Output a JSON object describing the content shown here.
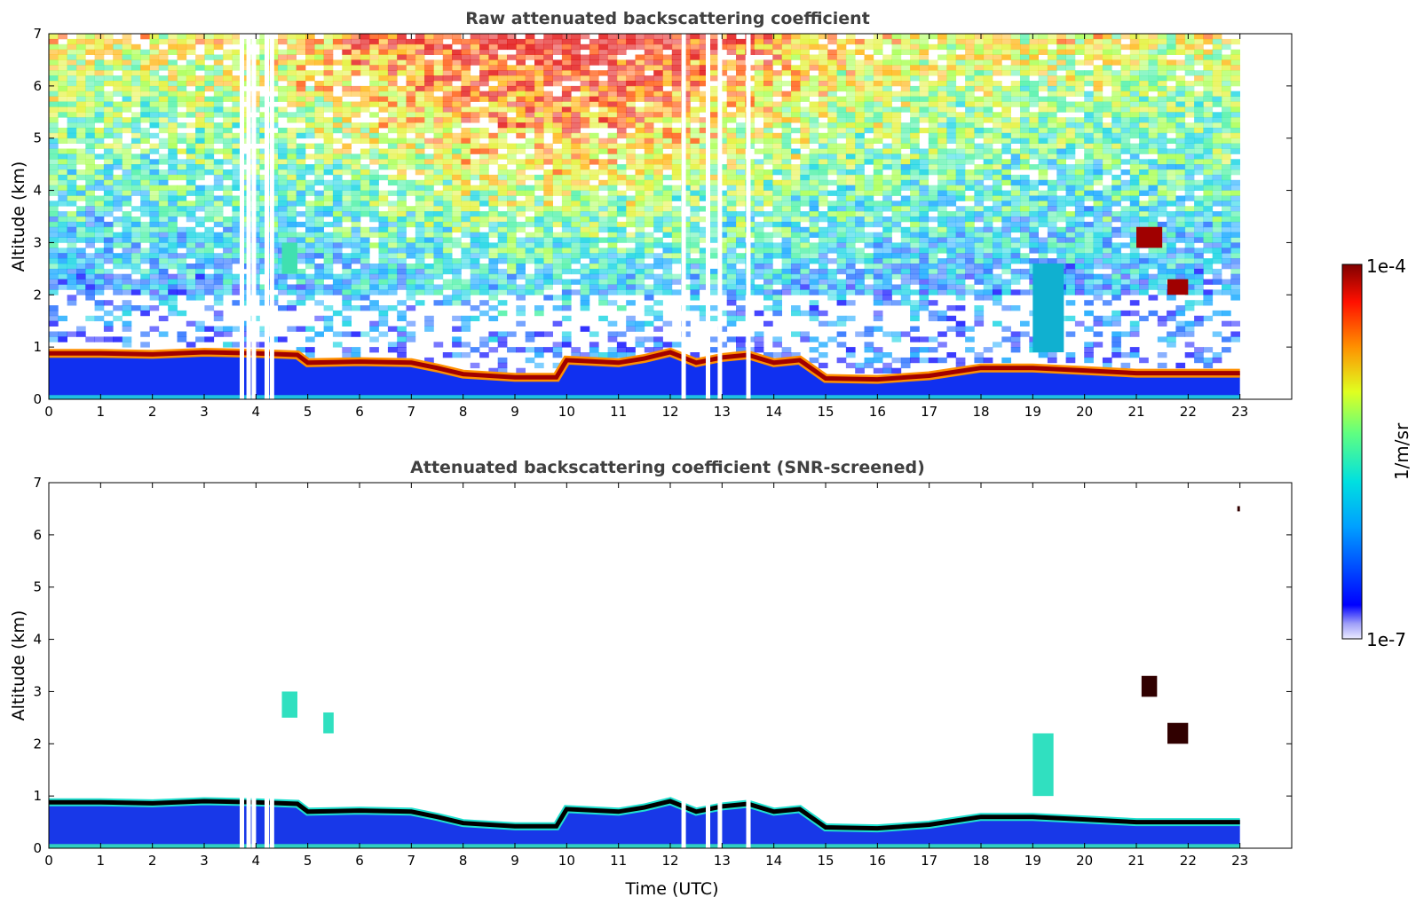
{
  "chart_data": [
    {
      "type": "heatmap",
      "title": "Raw attenuated backscattering coefficient",
      "xlabel": "",
      "ylabel": "Altitude (km)",
      "xlim": [
        0,
        24
      ],
      "ylim": [
        0,
        7
      ],
      "xticks": [
        "0",
        "1",
        "2",
        "3",
        "4",
        "5",
        "6",
        "7",
        "8",
        "9",
        "10",
        "11",
        "12",
        "13",
        "14",
        "15",
        "16",
        "17",
        "18",
        "19",
        "20",
        "21",
        "22",
        "23"
      ],
      "yticks": [
        "0",
        "1",
        "2",
        "3",
        "4",
        "5",
        "6",
        "7"
      ],
      "data_end_hour": 23,
      "boundary_layer_top_km": [
        [
          0,
          0.88
        ],
        [
          1,
          0.88
        ],
        [
          2,
          0.86
        ],
        [
          3,
          0.9
        ],
        [
          4,
          0.88
        ],
        [
          4.8,
          0.85
        ],
        [
          5,
          0.7
        ],
        [
          6,
          0.72
        ],
        [
          7,
          0.7
        ],
        [
          7.5,
          0.6
        ],
        [
          8,
          0.48
        ],
        [
          9,
          0.42
        ],
        [
          9.8,
          0.42
        ],
        [
          10,
          0.75
        ],
        [
          11,
          0.7
        ],
        [
          11.5,
          0.78
        ],
        [
          12,
          0.9
        ],
        [
          12.5,
          0.7
        ],
        [
          13,
          0.8
        ],
        [
          13.5,
          0.85
        ],
        [
          14,
          0.7
        ],
        [
          14.5,
          0.75
        ],
        [
          15,
          0.4
        ],
        [
          16,
          0.38
        ],
        [
          17,
          0.45
        ],
        [
          18,
          0.6
        ],
        [
          19,
          0.6
        ],
        [
          20,
          0.55
        ],
        [
          21,
          0.5
        ],
        [
          22,
          0.5
        ],
        [
          23,
          0.5
        ]
      ],
      "gaps_hour": [
        3.72,
        3.85,
        3.95,
        4.2,
        4.3,
        12.25,
        12.72,
        12.95,
        13.5
      ],
      "clouds": [
        {
          "x": 21.0,
          "x2": 21.5,
          "ymin": 2.9,
          "ymax": 3.3,
          "level": "high"
        },
        {
          "x": 21.6,
          "x2": 22.0,
          "ymin": 2.0,
          "ymax": 2.3,
          "level": "high"
        },
        {
          "x": 19.0,
          "x2": 19.6,
          "ymin": 0.9,
          "ymax": 2.6,
          "level": "mid"
        },
        {
          "x": 4.5,
          "x2": 4.8,
          "ymin": 2.4,
          "ymax": 3.0,
          "level": "low"
        }
      ],
      "grid": false
    },
    {
      "type": "heatmap",
      "title": "Attenuated backscattering coefficient (SNR-screened)",
      "xlabel": "Time (UTC)",
      "ylabel": "Altitude (km)",
      "xlim": [
        0,
        24
      ],
      "ylim": [
        0,
        7
      ],
      "xticks": [
        "0",
        "1",
        "2",
        "3",
        "4",
        "5",
        "6",
        "7",
        "8",
        "9",
        "10",
        "11",
        "12",
        "13",
        "14",
        "15",
        "16",
        "17",
        "18",
        "19",
        "20",
        "21",
        "22",
        "23"
      ],
      "yticks": [
        "0",
        "1",
        "2",
        "3",
        "4",
        "5",
        "6",
        "7"
      ],
      "data_end_hour": 23,
      "features": [
        {
          "x": 4.5,
          "x2": 4.8,
          "ymin": 2.5,
          "ymax": 3.0,
          "level": "mid"
        },
        {
          "x": 5.3,
          "x2": 5.5,
          "ymin": 2.2,
          "ymax": 2.6,
          "level": "mid"
        },
        {
          "x": 21.1,
          "x2": 21.4,
          "ymin": 2.9,
          "ymax": 3.3,
          "level": "top"
        },
        {
          "x": 21.6,
          "x2": 22.0,
          "ymin": 2.0,
          "ymax": 2.4,
          "level": "top"
        },
        {
          "x": 19.0,
          "x2": 19.4,
          "ymin": 1.0,
          "ymax": 2.2,
          "level": "mid"
        },
        {
          "x": 22.95,
          "x2": 23.0,
          "ymin": 6.45,
          "ymax": 6.55,
          "level": "top"
        }
      ],
      "grid": false
    }
  ],
  "colorbar": {
    "label": "1/m/sr",
    "max_label": "1e-4",
    "min_label": "1e-7",
    "scale": "log",
    "colormap": "jet"
  }
}
